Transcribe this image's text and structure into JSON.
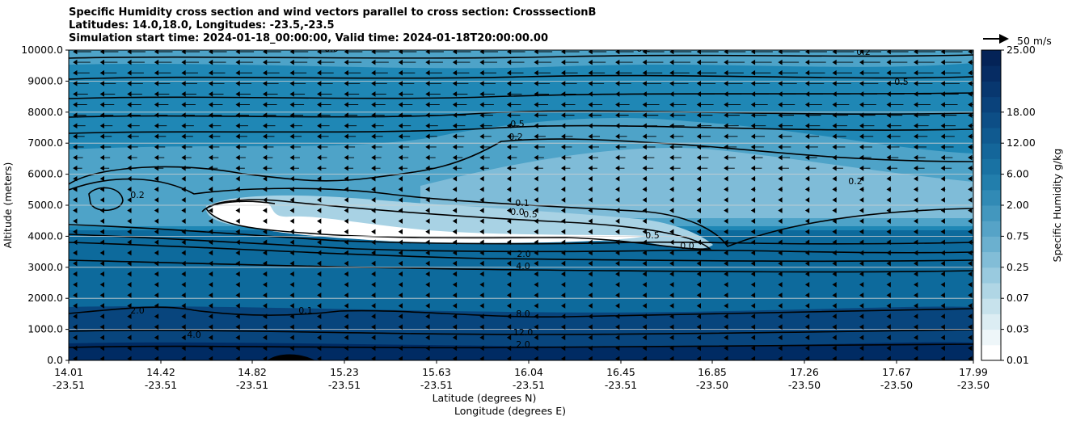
{
  "titles": [
    "Specific Humidity cross section and wind vectors parallel to cross section: CrosssectionB",
    "Latitudes: 14.0,18.0, Longitudes: -23.5,-23.5",
    "Simulation start time: 2024-01-18_00:00:00, Valid time: 2024-01-18T20:00:00.00"
  ],
  "colors": {
    "dark": "#002b63",
    "deep": "#08457d",
    "mid": "#0d6a9c",
    "teal": "#1f87b5",
    "light": "#4ea3c8",
    "pale": "#7fbcd8",
    "paler": "#a8d2e4",
    "white": "#ffffff"
  },
  "chart_data": {
    "type": "contourf",
    "ylabel": "Altitude (meters)",
    "xlabel_lat": "Latitude (degrees N)",
    "xlabel_lon": "Longitude (degrees E)",
    "ylim": [
      0,
      10000
    ],
    "xlim": [
      14.01,
      17.99
    ],
    "y_ticks": [
      "0.0",
      "1000.0",
      "2000.0",
      "3000.0",
      "4000.0",
      "5000.0",
      "6000.0",
      "7000.0",
      "8000.0",
      "9000.0",
      "10000.0"
    ],
    "x_ticks": [
      {
        "lat": "14.01",
        "lon": "-23.51"
      },
      {
        "lat": "14.42",
        "lon": "-23.51"
      },
      {
        "lat": "14.82",
        "lon": "-23.51"
      },
      {
        "lat": "15.23",
        "lon": "-23.51"
      },
      {
        "lat": "15.63",
        "lon": "-23.51"
      },
      {
        "lat": "16.04",
        "lon": "-23.51"
      },
      {
        "lat": "16.45",
        "lon": "-23.51"
      },
      {
        "lat": "16.85",
        "lon": "-23.50"
      },
      {
        "lat": "17.26",
        "lon": "-23.50"
      },
      {
        "lat": "17.67",
        "lon": "-23.50"
      },
      {
        "lat": "17.99",
        "lon": "-23.50"
      }
    ],
    "grid": "horizontal",
    "colorbar": {
      "label": "Specific Humidity g/kg",
      "ticks": [
        "0.01",
        "0.03",
        "0.07",
        "0.25",
        "0.75",
        "2.00",
        "6.00",
        "12.00",
        "18.00",
        "25.00"
      ],
      "levels": 20
    },
    "contour_labels": [
      "0.5",
      "0.2",
      "0.1",
      "0.0",
      "0.5",
      "2.0",
      "4.0",
      "8.0",
      "12.0",
      "2.0",
      "2.0",
      "0.1",
      "4.0",
      "0.2",
      "0.5",
      "0.2",
      "0.2",
      "0.2",
      "0.5",
      "0.0",
      "0.0"
    ],
    "quiver_key": "50 m/s"
  }
}
